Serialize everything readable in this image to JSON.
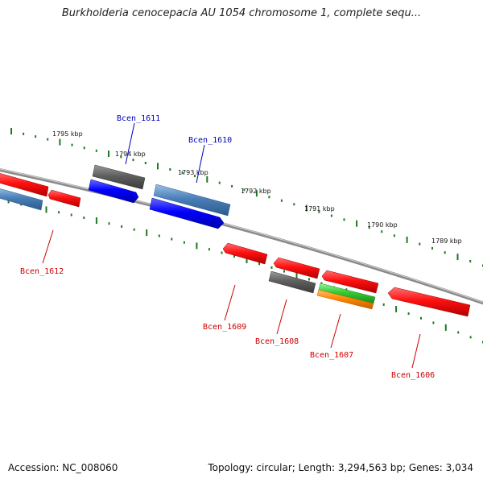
{
  "title": "Burkholderia cenocepacia AU 1054 chromosome 1, complete sequ...",
  "footer": {
    "accession": "Accession: NC_008060",
    "summary": "Topology: circular; Length: 3,294,563 bp; Genes: 3,034"
  },
  "colors": {
    "backbone": "#8a8a8a",
    "ticks": "#1e7a1e",
    "forward_label": "#0000bb",
    "reverse_label": "#cc0000",
    "red": "#ff1010",
    "gray": "#5f5f5f",
    "steel_blue": "#4a7fb8",
    "blue": "#0000ff",
    "green": "#33cc33",
    "orange": "#ff8800"
  },
  "scale_labels": [
    "1795 kbp",
    "1794 kbp",
    "1793 kbp",
    "1792 kbp",
    "1791 kbp",
    "1790 kbp",
    "1789 kbp"
  ],
  "genes": [
    {
      "name": "Bcen_1611",
      "strand": "forward"
    },
    {
      "name": "Bcen_1610",
      "strand": "forward"
    },
    {
      "name": "Bcen_1612",
      "strand": "reverse"
    },
    {
      "name": "Bcen_1609",
      "strand": "reverse"
    },
    {
      "name": "Bcen_1608",
      "strand": "reverse"
    },
    {
      "name": "Bcen_1607",
      "strand": "reverse"
    },
    {
      "name": "Bcen_1606",
      "strand": "reverse"
    }
  ]
}
